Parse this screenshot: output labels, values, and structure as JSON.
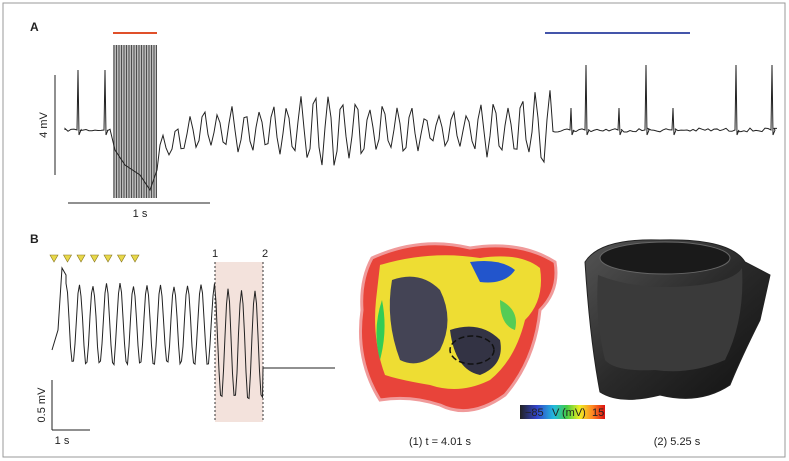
{
  "panel_a": {
    "label": "A",
    "scale_y": "4 mV",
    "scale_x": "1 s"
  },
  "panel_b": {
    "label": "B",
    "markers": [
      "1",
      "2"
    ],
    "scale_y": "0.5 mV",
    "scale_x": "1 s",
    "maps": [
      {
        "caption": "(1) t = 4.01 s"
      },
      {
        "caption": "(2) 5.25 s"
      }
    ],
    "colorbar": {
      "min": "−85",
      "label": "V",
      "unit": "(mV)",
      "max": "15"
    }
  }
}
